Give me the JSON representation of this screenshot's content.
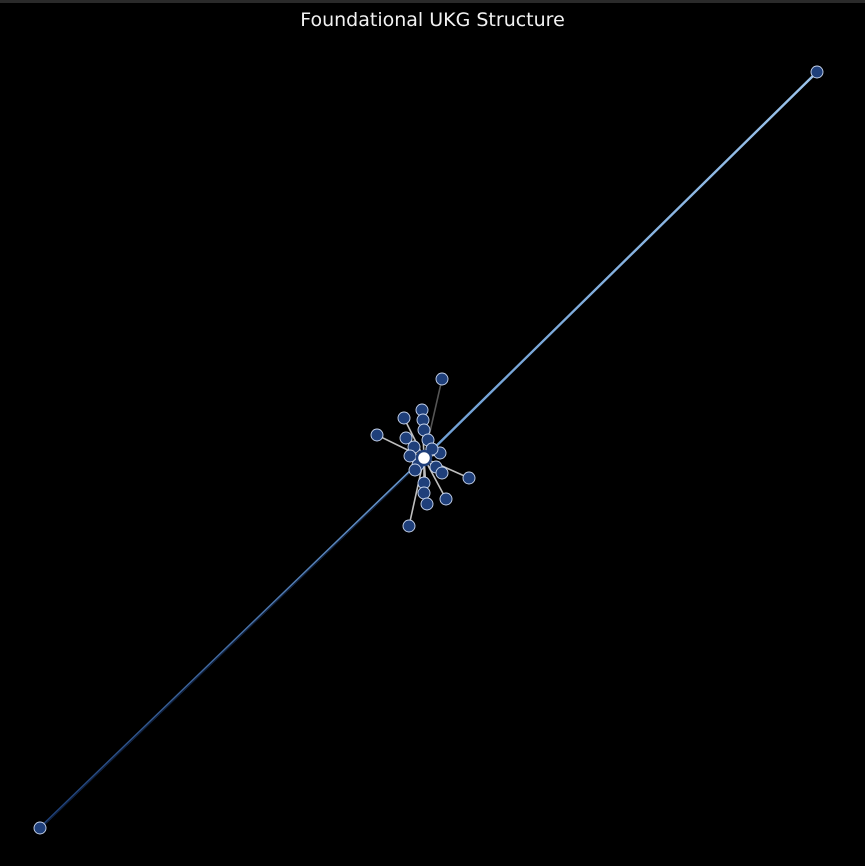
{
  "title": "Foundational UKG Structure",
  "colors": {
    "background": "#000000",
    "node_fill": "#1f3f7a",
    "node_stroke": "#c9d6ee",
    "edge_light": "#8fb6e0",
    "edge_dark": "#1d3f78",
    "edge_gray": "#bfbfbf"
  }
}
